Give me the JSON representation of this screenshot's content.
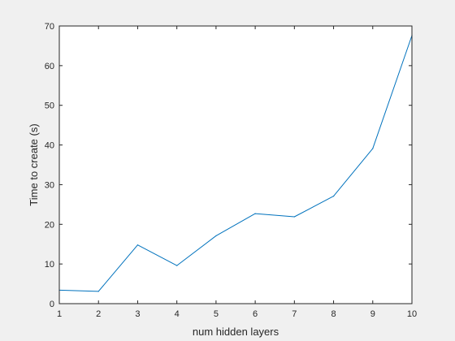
{
  "chart_data": {
    "type": "line",
    "title": "",
    "xlabel": "num hidden layers",
    "ylabel": "Time to create (s)",
    "xlim": [
      1,
      10
    ],
    "ylim": [
      0,
      70
    ],
    "xticks": [
      1,
      2,
      3,
      4,
      5,
      6,
      7,
      8,
      9,
      10
    ],
    "yticks": [
      0,
      10,
      20,
      30,
      40,
      50,
      60,
      70
    ],
    "grid": false,
    "series": [
      {
        "color": "#0072bd",
        "x": [
          1,
          2,
          3,
          4,
          5,
          6,
          7,
          8,
          9,
          10
        ],
        "y": [
          3.4,
          3.1,
          14.8,
          9.6,
          17.1,
          22.7,
          21.9,
          27.1,
          39.1,
          67.6
        ]
      }
    ]
  }
}
